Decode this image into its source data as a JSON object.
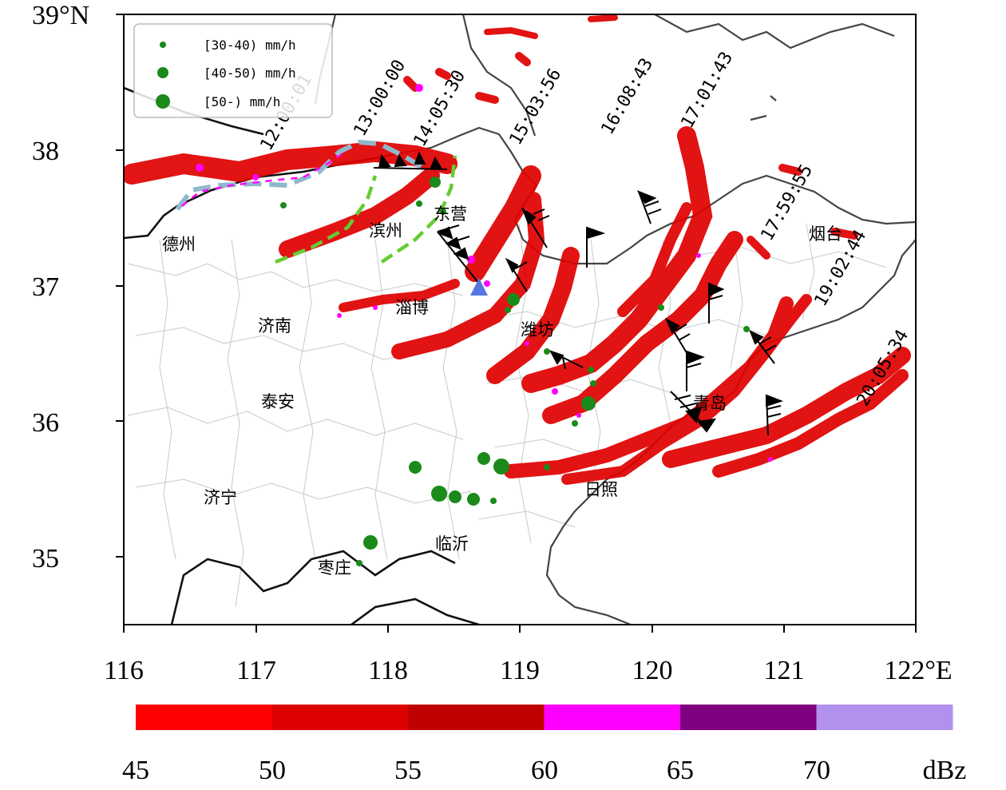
{
  "map": {
    "lat_labels": [
      "39°N",
      "38",
      "37",
      "36",
      "35"
    ],
    "lon_labels": [
      "116",
      "117",
      "118",
      "119",
      "120",
      "121",
      "122°E"
    ],
    "cities": [
      "德州",
      "滨州",
      "东营",
      "烟台",
      "济南",
      "淄博",
      "潍坊",
      "泰安",
      "青岛",
      "济宁",
      "日照",
      "临沂",
      "枣庄"
    ],
    "times": [
      "12:00:01",
      "13:00:00",
      "14:05:30",
      "15:03:56",
      "16:08:43",
      "17:01:43",
      "17:59:55",
      "19:02:44",
      "20:05:34"
    ]
  },
  "legend": {
    "items": [
      "[30-40) mm/h",
      "[40-50) mm/h",
      "[50-) mm/h"
    ],
    "marker_color": "#1a8a1a"
  },
  "colorbar": {
    "ticks": [
      "45",
      "50",
      "55",
      "60",
      "65",
      "70"
    ],
    "unit": "dBz",
    "colors": [
      "#ff0000",
      "#dd0000",
      "#c00000",
      "#ff00ff",
      "#7f007f",
      "#b190ee"
    ]
  },
  "colors": {
    "echo": "#e00000",
    "echo_core": "#ff00ff",
    "rain_marker": "#1a8a1a",
    "front_blue": "#90b8cc",
    "front_green": "#66cc33",
    "station": "#5577dd"
  }
}
